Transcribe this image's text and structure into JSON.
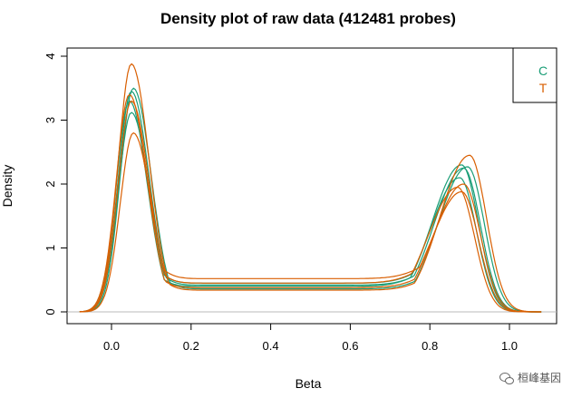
{
  "chart_data": {
    "type": "line",
    "title": "Density plot of raw data (412481 probes)",
    "xlabel": "Beta",
    "ylabel": "Density",
    "xlim": [
      -0.1,
      1.1
    ],
    "ylim": [
      0,
      4
    ],
    "xticks": [
      "0.0",
      "0.2",
      "0.4",
      "0.6",
      "0.8",
      "1.0"
    ],
    "yticks": [
      "0",
      "1",
      "2",
      "3",
      "4"
    ],
    "grid": false,
    "legend_position": "top-right",
    "legend": [
      {
        "label": "C",
        "color": "#1b9e77"
      },
      {
        "label": "T",
        "color": "#d95f02"
      }
    ],
    "series": [
      {
        "group": "C",
        "color": "#1b9e77",
        "peak1": 3.45,
        "peak1_x": 0.05,
        "valley": 0.42,
        "valley_x": 0.38,
        "peak2": 2.25,
        "peak2_x": 0.885
      },
      {
        "group": "C",
        "color": "#1b9e77",
        "peak1": 3.3,
        "peak1_x": 0.045,
        "valley": 0.4,
        "valley_x": 0.4,
        "peak2": 2.1,
        "peak2_x": 0.875
      },
      {
        "group": "C",
        "color": "#1b9e77",
        "peak1": 3.12,
        "peak1_x": 0.05,
        "valley": 0.45,
        "valley_x": 0.37,
        "peak2": 2.3,
        "peak2_x": 0.88
      },
      {
        "group": "C",
        "color": "#1b9e77",
        "peak1": 3.5,
        "peak1_x": 0.055,
        "valley": 0.36,
        "valley_x": 0.42,
        "peak2": 2.27,
        "peak2_x": 0.895
      },
      {
        "group": "T",
        "color": "#d95f02",
        "peak1": 3.88,
        "peak1_x": 0.05,
        "valley": 0.34,
        "valley_x": 0.4,
        "peak2": 2.45,
        "peak2_x": 0.9
      },
      {
        "group": "T",
        "color": "#d95f02",
        "peak1": 2.8,
        "peak1_x": 0.055,
        "valley": 0.52,
        "valley_x": 0.3,
        "peak2": 1.88,
        "peak2_x": 0.88
      },
      {
        "group": "T",
        "color": "#d95f02",
        "peak1": 3.3,
        "peak1_x": 0.05,
        "valley": 0.45,
        "valley_x": 0.33,
        "peak2": 1.95,
        "peak2_x": 0.87
      },
      {
        "group": "T",
        "color": "#d95f02",
        "peak1": 3.4,
        "peak1_x": 0.045,
        "valley": 0.38,
        "valley_x": 0.39,
        "peak2": 2.0,
        "peak2_x": 0.885
      }
    ]
  },
  "watermark": {
    "text": "桓峰基因"
  }
}
